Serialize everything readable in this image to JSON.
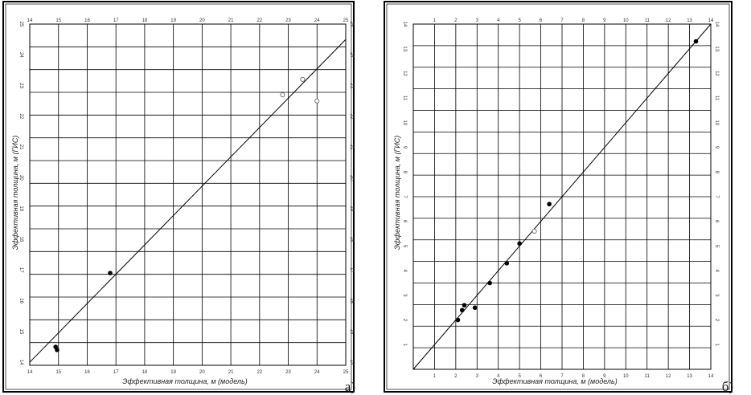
{
  "chart_data": [
    {
      "type": "scatter",
      "panel_label": "a)",
      "xlabel": "Эффективная толщина, м (модель)",
      "ylabel": "Эффективная толщина, м (ГИС)",
      "xlim": [
        14,
        25
      ],
      "ylim": [
        13.9,
        25.0
      ],
      "x_ticks": [
        "14",
        "15",
        "16",
        "17",
        "18",
        "19",
        "20",
        "21",
        "22",
        "23",
        "24",
        "25"
      ],
      "y_ticks": [
        "14",
        "15",
        "16",
        "17",
        "18",
        "19",
        "20",
        "21",
        "22",
        "23",
        "24",
        "25"
      ],
      "grid": true,
      "trend_line": [
        [
          14,
          14.0
        ],
        [
          25,
          24.5
        ]
      ],
      "points_filled": [
        {
          "x": 14.9,
          "y": 14.5
        },
        {
          "x": 14.95,
          "y": 14.4
        },
        {
          "x": 16.8,
          "y": 16.9
        }
      ],
      "points_open": [
        {
          "x": 22.8,
          "y": 22.7
        },
        {
          "x": 23.5,
          "y": 23.2
        },
        {
          "x": 24.0,
          "y": 22.5
        }
      ]
    },
    {
      "type": "scatter",
      "panel_label": "б)",
      "xlabel": "Эффективная толщина, м (модель)",
      "ylabel": "Эффективная толщина, м (ГИС)",
      "xlim": [
        0,
        14
      ],
      "ylim": [
        0,
        14
      ],
      "x_ticks": [
        "1",
        "2",
        "3",
        "4",
        "5",
        "6",
        "7",
        "8",
        "9",
        "10",
        "11",
        "12",
        "13",
        "14"
      ],
      "y_ticks": [
        "1",
        "2",
        "3",
        "4",
        "5",
        "6",
        "7",
        "8",
        "9",
        "10",
        "11",
        "12",
        "13",
        "14"
      ],
      "grid": true,
      "trend_line": [
        [
          0,
          0
        ],
        [
          14,
          14
        ]
      ],
      "points_filled": [
        {
          "x": 2.1,
          "y": 2.0
        },
        {
          "x": 2.3,
          "y": 2.4
        },
        {
          "x": 2.4,
          "y": 2.6
        },
        {
          "x": 2.9,
          "y": 2.5
        },
        {
          "x": 3.6,
          "y": 3.5
        },
        {
          "x": 4.4,
          "y": 4.3
        },
        {
          "x": 5.0,
          "y": 5.1
        },
        {
          "x": 6.4,
          "y": 6.7
        },
        {
          "x": 13.3,
          "y": 13.3
        }
      ],
      "points_open": [
        {
          "x": 5.7,
          "y": 5.6
        }
      ]
    }
  ]
}
